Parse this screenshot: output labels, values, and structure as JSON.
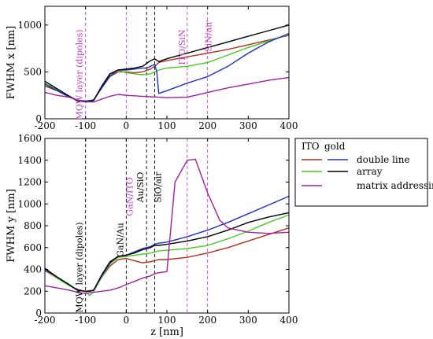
{
  "chart_data": [
    {
      "id": "top",
      "type": "line",
      "xlabel": "",
      "ylabel": "FWHM x [nm]",
      "xlim": [
        -200,
        400
      ],
      "ylim": [
        0,
        1200
      ],
      "xticks": [
        -200,
        -100,
        0,
        100,
        200,
        300,
        400
      ],
      "yticks": [
        0,
        500,
        1000
      ],
      "grid": false,
      "annotations": [
        {
          "x": -100,
          "text": "MQW layer (dipoles)",
          "color": "#c040c0"
        },
        {
          "x": 150,
          "text": "ITO/SiN",
          "color": "#c040c0"
        },
        {
          "x": 200,
          "text": "SiN/air",
          "color": "#c040c0"
        }
      ],
      "vlines": [
        {
          "x": -100,
          "color": "#c040c0"
        },
        {
          "x": 0,
          "color": "#c040c0"
        },
        {
          "x": 50,
          "color": "#000000"
        },
        {
          "x": 70,
          "color": "#000000"
        },
        {
          "x": 150,
          "color": "#c040c0"
        },
        {
          "x": 200,
          "color": "#c040c0"
        }
      ],
      "series": [
        {
          "key": "ito_double",
          "color": "#b03020",
          "x": [
            -200,
            -170,
            -140,
            -120,
            -100,
            -90,
            -80,
            -60,
            -40,
            -20,
            0,
            20,
            40,
            60,
            70,
            80,
            100,
            150,
            200,
            250,
            300,
            350,
            400
          ],
          "y": [
            350,
            300,
            240,
            200,
            185,
            190,
            200,
            330,
            450,
            500,
            500,
            490,
            500,
            530,
            560,
            600,
            620,
            660,
            700,
            740,
            790,
            840,
            890
          ]
        },
        {
          "key": "ito_array",
          "color": "#44cc22",
          "x": [
            -200,
            -170,
            -140,
            -120,
            -100,
            -90,
            -80,
            -60,
            -40,
            -20,
            0,
            20,
            40,
            60,
            70,
            80,
            100,
            150,
            200,
            250,
            300,
            350,
            400
          ],
          "y": [
            380,
            310,
            240,
            200,
            190,
            195,
            205,
            340,
            460,
            520,
            490,
            480,
            470,
            480,
            500,
            520,
            540,
            560,
            600,
            680,
            760,
            830,
            900
          ]
        },
        {
          "key": "gold_double",
          "color": "#2030c0",
          "x": [
            -200,
            -170,
            -140,
            -120,
            -100,
            -90,
            -80,
            -60,
            -40,
            -20,
            0,
            20,
            40,
            50,
            60,
            70,
            75,
            80,
            100,
            150,
            200,
            250,
            300,
            350,
            400
          ],
          "y": [
            370,
            300,
            230,
            200,
            190,
            195,
            200,
            330,
            460,
            520,
            520,
            530,
            540,
            540,
            560,
            580,
            500,
            270,
            300,
            380,
            450,
            560,
            700,
            820,
            910
          ]
        },
        {
          "key": "gold_array",
          "color": "#000000",
          "x": [
            -200,
            -170,
            -140,
            -120,
            -100,
            -90,
            -80,
            -60,
            -40,
            -20,
            0,
            20,
            40,
            60,
            70,
            80,
            100,
            150,
            200,
            250,
            300,
            350,
            400
          ],
          "y": [
            400,
            320,
            240,
            190,
            180,
            185,
            195,
            350,
            480,
            520,
            530,
            540,
            560,
            620,
            640,
            610,
            640,
            700,
            760,
            820,
            880,
            940,
            1000
          ]
        },
        {
          "key": "matrix",
          "color": "#a020a0",
          "x": [
            -200,
            -170,
            -140,
            -120,
            -100,
            -80,
            -60,
            -40,
            -20,
            0,
            20,
            40,
            60,
            80,
            100,
            150,
            200,
            250,
            300,
            350,
            400
          ],
          "y": [
            280,
            250,
            230,
            200,
            180,
            180,
            210,
            240,
            260,
            250,
            245,
            240,
            235,
            230,
            225,
            230,
            280,
            330,
            370,
            410,
            440
          ]
        }
      ]
    },
    {
      "id": "bottom",
      "type": "line",
      "xlabel": "z [nm]",
      "ylabel": "FWHM y [nm]",
      "xlim": [
        -200,
        400
      ],
      "ylim": [
        0,
        1600
      ],
      "xticks": [
        -200,
        -100,
        0,
        100,
        200,
        300,
        400
      ],
      "yticks": [
        0,
        200,
        400,
        600,
        800,
        1000,
        1200,
        1400,
        1600
      ],
      "grid": false,
      "annotations": [
        {
          "x": -100,
          "text": "MQW layer (dipoles)",
          "color": "#000000"
        },
        {
          "x": 0,
          "text": "GaN/Au",
          "color": "#000000"
        },
        {
          "x": 0,
          "text": "GaN/ITO",
          "color": "#c040c0"
        },
        {
          "x": 50,
          "text": "Au/SiO",
          "color": "#000000"
        },
        {
          "x": 70,
          "text": "SiO/air",
          "color": "#000000"
        }
      ],
      "vlines": [
        {
          "x": -100,
          "color": "#000000"
        },
        {
          "x": 0,
          "color": "#000000"
        },
        {
          "x": 50,
          "color": "#000000"
        },
        {
          "x": 70,
          "color": "#000000"
        },
        {
          "x": 150,
          "color": "#c040c0"
        },
        {
          "x": 200,
          "color": "#c040c0"
        }
      ],
      "series": [
        {
          "key": "ito_double",
          "color": "#b03020",
          "x": [
            -200,
            -170,
            -140,
            -120,
            -100,
            -90,
            -80,
            -60,
            -40,
            -20,
            0,
            20,
            40,
            60,
            70,
            80,
            100,
            150,
            200,
            250,
            300,
            350,
            400
          ],
          "y": [
            390,
            320,
            260,
            210,
            200,
            205,
            210,
            330,
            430,
            490,
            500,
            480,
            460,
            470,
            480,
            490,
            490,
            510,
            550,
            600,
            660,
            720,
            780
          ]
        },
        {
          "key": "ito_array",
          "color": "#44cc22",
          "x": [
            -200,
            -170,
            -140,
            -120,
            -100,
            -90,
            -80,
            -60,
            -40,
            -20,
            0,
            20,
            40,
            60,
            70,
            80,
            100,
            150,
            200,
            250,
            300,
            350,
            400
          ],
          "y": [
            400,
            320,
            250,
            210,
            200,
            160,
            200,
            330,
            450,
            510,
            520,
            530,
            540,
            550,
            560,
            570,
            575,
            590,
            620,
            680,
            750,
            830,
            900
          ]
        },
        {
          "key": "gold_double",
          "color": "#2030c0",
          "x": [
            -200,
            -170,
            -140,
            -120,
            -100,
            -90,
            -80,
            -60,
            -40,
            -20,
            0,
            20,
            40,
            60,
            70,
            80,
            100,
            150,
            200,
            250,
            300,
            350,
            400
          ],
          "y": [
            400,
            330,
            260,
            210,
            200,
            200,
            210,
            340,
            460,
            520,
            530,
            560,
            590,
            610,
            630,
            640,
            650,
            700,
            760,
            830,
            910,
            990,
            1070
          ]
        },
        {
          "key": "gold_array",
          "color": "#000000",
          "x": [
            -200,
            -170,
            -140,
            -120,
            -100,
            -90,
            -80,
            -60,
            -40,
            -20,
            0,
            20,
            40,
            60,
            70,
            80,
            100,
            150,
            200,
            250,
            300,
            350,
            400
          ],
          "y": [
            410,
            330,
            260,
            210,
            200,
            200,
            210,
            350,
            470,
            520,
            530,
            550,
            580,
            600,
            620,
            620,
            630,
            660,
            700,
            760,
            830,
            880,
            920
          ]
        },
        {
          "key": "matrix",
          "color": "#a020a0",
          "x": [
            -200,
            -170,
            -140,
            -120,
            -100,
            -80,
            -60,
            -40,
            -20,
            0,
            20,
            40,
            60,
            70,
            80,
            100,
            120,
            150,
            170,
            200,
            230,
            250,
            300,
            350,
            400
          ],
          "y": [
            250,
            230,
            210,
            190,
            180,
            190,
            200,
            210,
            230,
            260,
            290,
            320,
            340,
            360,
            370,
            380,
            1200,
            1400,
            1410,
            1100,
            850,
            780,
            740,
            730,
            740
          ]
        }
      ]
    }
  ],
  "legend": {
    "header_ito": "ITO",
    "header_gold": "gold",
    "rows": [
      {
        "label": "double line",
        "swatches": [
          {
            "color": "#b03020"
          },
          {
            "color": "#2030c0"
          }
        ]
      },
      {
        "label": "array",
        "swatches": [
          {
            "color": "#44cc22"
          },
          {
            "color": "#000000"
          }
        ]
      },
      {
        "label": "matrix addressing",
        "swatches": [
          {
            "color": "#a020a0"
          }
        ]
      }
    ]
  }
}
